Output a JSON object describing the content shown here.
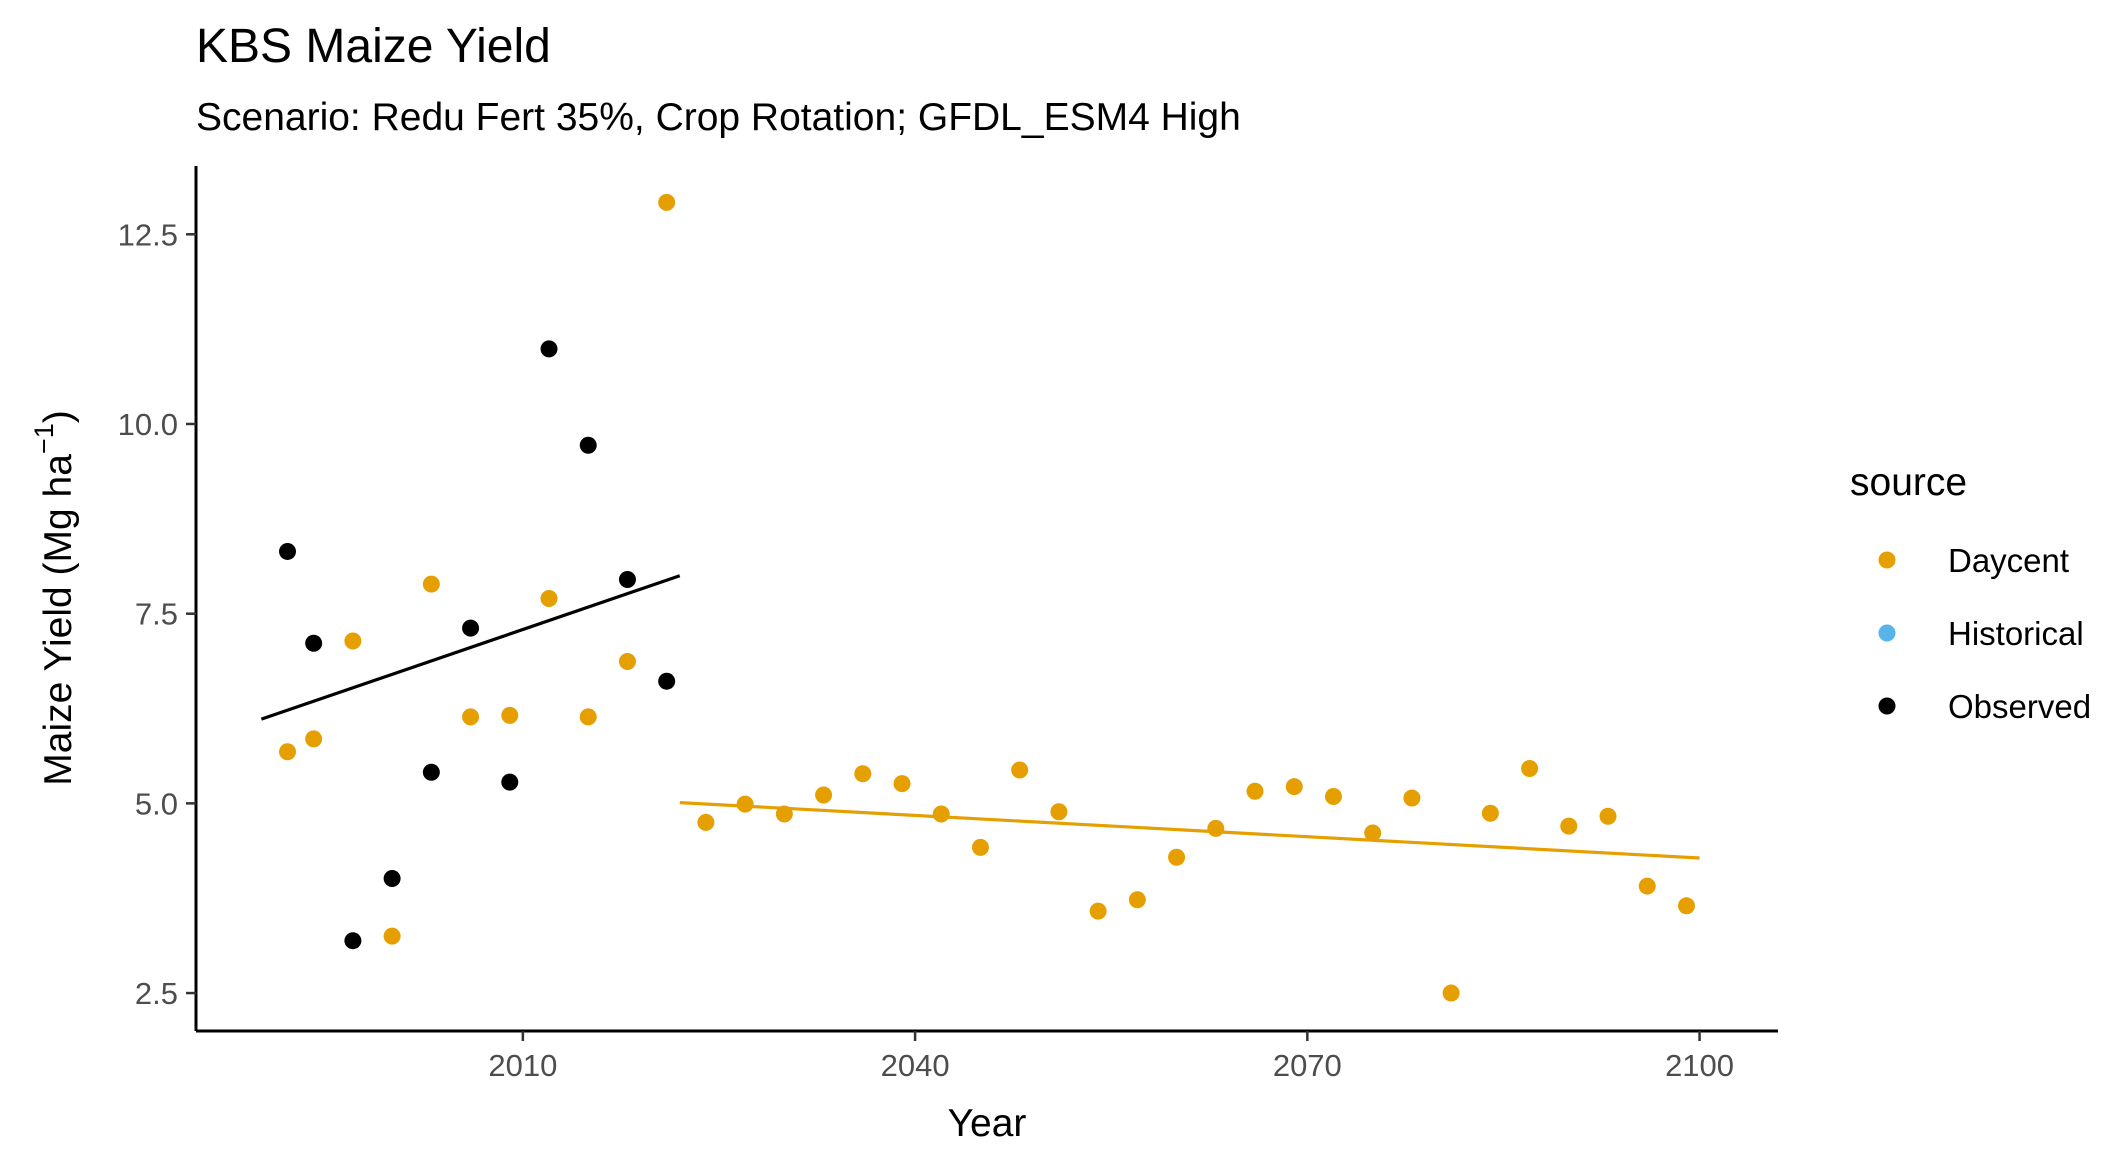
{
  "chart_data": {
    "type": "scatter",
    "title": "KBS Maize Yield",
    "subtitle": "Scenario: Redu Fert 35%, Crop Rotation; GFDL_ESM4 High",
    "xlabel": "Year",
    "ylabel_main": "Maize Yield (Mg ha",
    "ylabel_sup": "−1",
    "ylabel_close": ")",
    "xlim": [
      1985,
      2106
    ],
    "ylim": [
      2.0,
      13.4
    ],
    "xticks": [
      2010,
      2040,
      2070,
      2100
    ],
    "yticks": [
      2.5,
      5.0,
      7.5,
      10.0,
      12.5
    ],
    "ytick_labels": [
      "2.5",
      "5.0",
      "7.5",
      "10.0",
      "12.5"
    ],
    "grid": false,
    "legend": {
      "title": "source",
      "position": "right",
      "entries": [
        {
          "name": "Daycent",
          "color": "#E69F00"
        },
        {
          "name": "Historical",
          "color": "#56B4E9"
        },
        {
          "name": "Observed",
          "color": "#000000"
        }
      ]
    },
    "series": [
      {
        "name": "Observed",
        "color": "#000000",
        "points": [
          [
            1992,
            8.32
          ],
          [
            1994,
            7.11
          ],
          [
            1997,
            3.19
          ],
          [
            2000,
            4.01
          ],
          [
            2003,
            5.41
          ],
          [
            2006,
            7.31
          ],
          [
            2009,
            5.28
          ],
          [
            2012,
            10.99
          ],
          [
            2015,
            9.72
          ],
          [
            2018,
            7.95
          ],
          [
            2021,
            6.61
          ]
        ]
      },
      {
        "name": "Daycent",
        "color": "#E69F00",
        "points": [
          [
            1992,
            5.68
          ],
          [
            1994,
            5.85
          ],
          [
            1997,
            7.14
          ],
          [
            2000,
            3.25
          ],
          [
            2003,
            7.89
          ],
          [
            2006,
            6.14
          ],
          [
            2009,
            6.16
          ],
          [
            2012,
            7.7
          ],
          [
            2015,
            6.14
          ],
          [
            2018,
            6.87
          ],
          [
            2021,
            12.92
          ],
          [
            2024,
            4.75
          ],
          [
            2027,
            4.99
          ],
          [
            2030,
            4.86
          ],
          [
            2033,
            5.11
          ],
          [
            2036,
            5.39
          ],
          [
            2039,
            5.26
          ],
          [
            2042,
            4.86
          ],
          [
            2045,
            4.42
          ],
          [
            2048,
            5.44
          ],
          [
            2051,
            4.89
          ],
          [
            2054,
            3.58
          ],
          [
            2057,
            3.73
          ],
          [
            2060,
            4.29
          ],
          [
            2063,
            4.67
          ],
          [
            2066,
            5.16
          ],
          [
            2069,
            5.22
          ],
          [
            2072,
            5.09
          ],
          [
            2075,
            4.61
          ],
          [
            2078,
            5.07
          ],
          [
            2081,
            2.5
          ],
          [
            2084,
            4.87
          ],
          [
            2087,
            5.46
          ],
          [
            2090,
            4.7
          ],
          [
            2093,
            4.83
          ],
          [
            2096,
            3.91
          ],
          [
            2099,
            3.65
          ]
        ]
      }
    ],
    "trend_lines": [
      {
        "series": "Observed",
        "color": "#000000",
        "x": [
          1990,
          2022
        ],
        "y": [
          6.11,
          8.0
        ]
      },
      {
        "series": "Daycent",
        "color": "#E69F00",
        "x": [
          2022,
          2100
        ],
        "y": [
          5.01,
          4.28
        ]
      }
    ]
  }
}
